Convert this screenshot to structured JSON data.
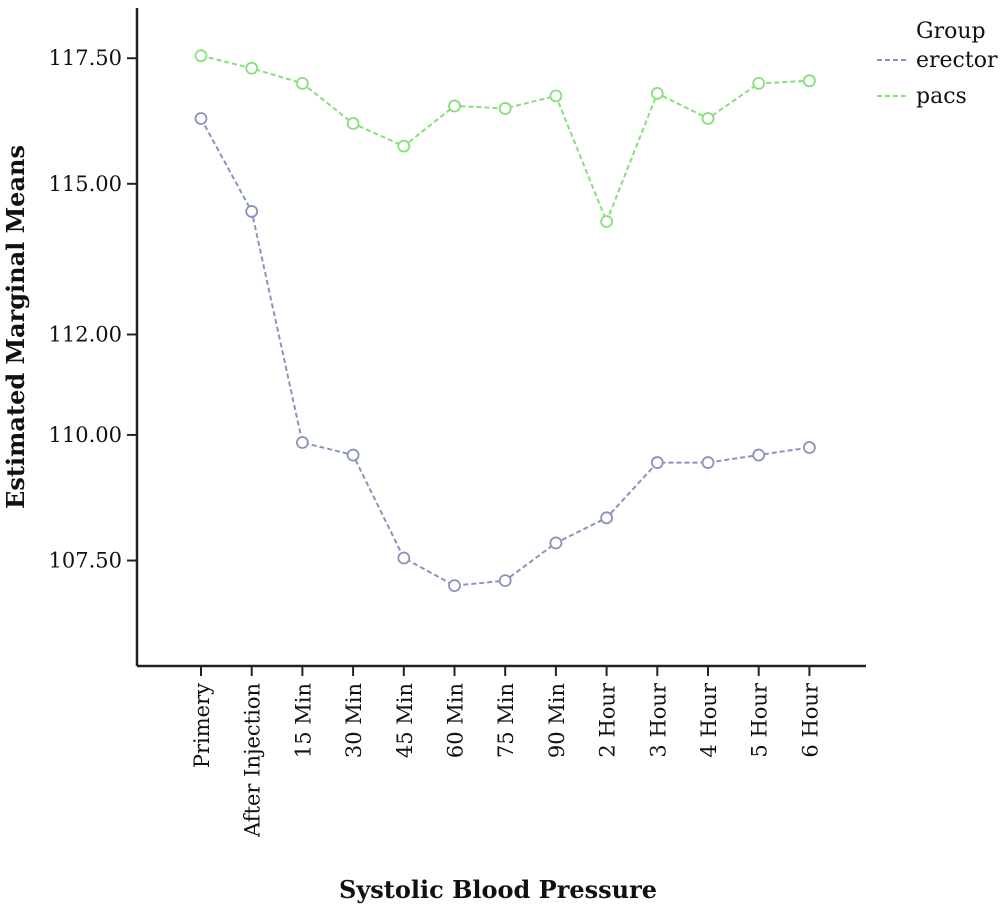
{
  "chart_data": {
    "type": "line",
    "xlabel": "Systolic Blood Pressure",
    "ylabel": "Estimated Marginal Means",
    "categories": [
      "Primery",
      "After Injection",
      "15 Min",
      "30 Min",
      "45 Min",
      "60 Min",
      "75 Min",
      "90 Min",
      "2 Hour",
      "3 Hour",
      "4 Hour",
      "5 Hour",
      "6 Hour"
    ],
    "y_ticks": [
      "117.50",
      "115.00",
      "112.00",
      "110.00",
      "107.50"
    ],
    "ylim": [
      105.4,
      118.5
    ],
    "grid": false,
    "legend": {
      "title": "Group",
      "position": "top-right"
    },
    "series": [
      {
        "name": "erector",
        "color": "#8a93c0",
        "values": [
          116.3,
          114.45,
          109.85,
          109.6,
          107.55,
          107.0,
          107.1,
          107.85,
          108.35,
          109.45,
          109.45,
          109.6,
          109.75
        ]
      },
      {
        "name": "pacs",
        "color": "#85e07a",
        "values": [
          117.55,
          117.3,
          117.0,
          116.2,
          115.75,
          116.55,
          116.5,
          116.75,
          114.25,
          116.8,
          116.3,
          117.0,
          117.05
        ]
      }
    ]
  }
}
